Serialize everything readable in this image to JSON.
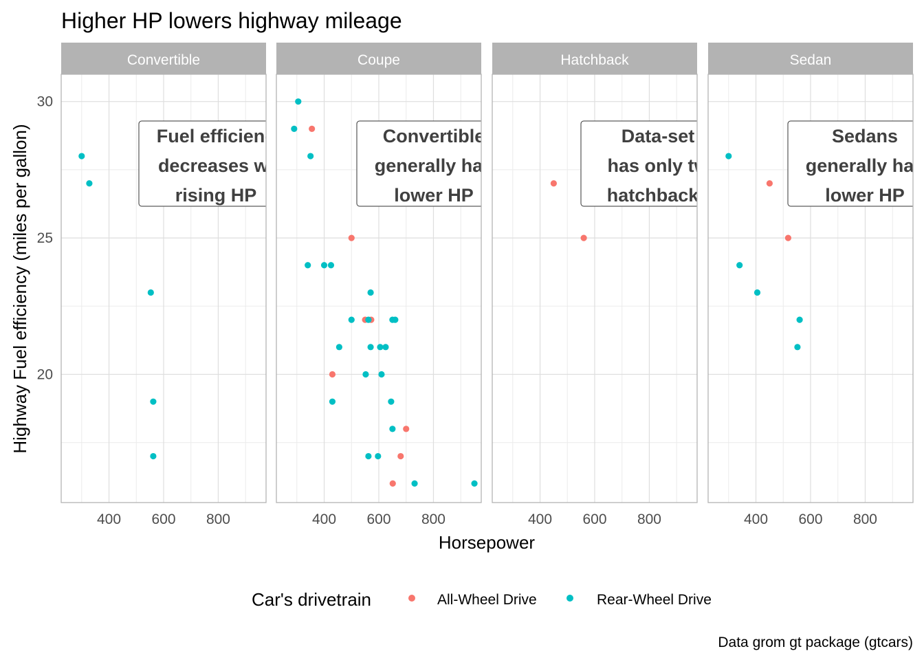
{
  "chart_data": {
    "type": "scatter",
    "title": "Higher HP lowers highway mileage",
    "xlabel": "Horsepower",
    "ylabel": "Highway Fuel efficiency (miles per gallon)",
    "caption": "Data grom gt package (gtcars)",
    "xlim": [
      225,
      975
    ],
    "ylim": [
      15.3,
      31.0
    ],
    "x_ticks": [
      400,
      600,
      800
    ],
    "y_ticks": [
      20,
      25,
      30
    ],
    "grid": true,
    "legend": {
      "title": "Car's drivetrain",
      "position": "bottom",
      "entries": [
        {
          "label": "All-Wheel Drive",
          "color": "#F8766D"
        },
        {
          "label": "Rear-Wheel Drive",
          "color": "#00BFC4"
        }
      ]
    },
    "facets": [
      {
        "label": "Convertible",
        "annotation": [
          "Fuel efficienc",
          "decreases wi",
          "rising HP"
        ],
        "points": [
          {
            "hp": 300,
            "mpg": 28,
            "drive": "Rear-Wheel Drive"
          },
          {
            "hp": 328,
            "mpg": 27,
            "drive": "Rear-Wheel Drive"
          },
          {
            "hp": 553,
            "mpg": 23,
            "drive": "Rear-Wheel Drive"
          },
          {
            "hp": 562,
            "mpg": 19,
            "drive": "Rear-Wheel Drive"
          },
          {
            "hp": 562,
            "mpg": 17,
            "drive": "Rear-Wheel Drive"
          }
        ]
      },
      {
        "label": "Coupe",
        "annotation": [
          "Convertible",
          "generally hav",
          "lower HP"
        ],
        "points": [
          {
            "hp": 305,
            "mpg": 30,
            "drive": "Rear-Wheel Drive"
          },
          {
            "hp": 290,
            "mpg": 29,
            "drive": "Rear-Wheel Drive"
          },
          {
            "hp": 355,
            "mpg": 29,
            "drive": "All-Wheel Drive"
          },
          {
            "hp": 350,
            "mpg": 28,
            "drive": "Rear-Wheel Drive"
          },
          {
            "hp": 500,
            "mpg": 25,
            "drive": "All-Wheel Drive"
          },
          {
            "hp": 340,
            "mpg": 24,
            "drive": "Rear-Wheel Drive"
          },
          {
            "hp": 400,
            "mpg": 24,
            "drive": "Rear-Wheel Drive"
          },
          {
            "hp": 425,
            "mpg": 24,
            "drive": "Rear-Wheel Drive"
          },
          {
            "hp": 570,
            "mpg": 23,
            "drive": "Rear-Wheel Drive"
          },
          {
            "hp": 500,
            "mpg": 22,
            "drive": "Rear-Wheel Drive"
          },
          {
            "hp": 550,
            "mpg": 22,
            "drive": "All-Wheel Drive"
          },
          {
            "hp": 572,
            "mpg": 22,
            "drive": "All-Wheel Drive"
          },
          {
            "hp": 562,
            "mpg": 22,
            "drive": "Rear-Wheel Drive"
          },
          {
            "hp": 650,
            "mpg": 22,
            "drive": "Rear-Wheel Drive"
          },
          {
            "hp": 660,
            "mpg": 22,
            "drive": "Rear-Wheel Drive"
          },
          {
            "hp": 455,
            "mpg": 21,
            "drive": "Rear-Wheel Drive"
          },
          {
            "hp": 570,
            "mpg": 21,
            "drive": "Rear-Wheel Drive"
          },
          {
            "hp": 605,
            "mpg": 21,
            "drive": "Rear-Wheel Drive"
          },
          {
            "hp": 625,
            "mpg": 21,
            "drive": "Rear-Wheel Drive"
          },
          {
            "hp": 430,
            "mpg": 20,
            "drive": "All-Wheel Drive"
          },
          {
            "hp": 552,
            "mpg": 20,
            "drive": "Rear-Wheel Drive"
          },
          {
            "hp": 610,
            "mpg": 20,
            "drive": "Rear-Wheel Drive"
          },
          {
            "hp": 430,
            "mpg": 19,
            "drive": "Rear-Wheel Drive"
          },
          {
            "hp": 645,
            "mpg": 19,
            "drive": "Rear-Wheel Drive"
          },
          {
            "hp": 700,
            "mpg": 18,
            "drive": "All-Wheel Drive"
          },
          {
            "hp": 650,
            "mpg": 18,
            "drive": "Rear-Wheel Drive"
          },
          {
            "hp": 680,
            "mpg": 17,
            "drive": "All-Wheel Drive"
          },
          {
            "hp": 562,
            "mpg": 17,
            "drive": "Rear-Wheel Drive"
          },
          {
            "hp": 597,
            "mpg": 17,
            "drive": "Rear-Wheel Drive"
          },
          {
            "hp": 651,
            "mpg": 16,
            "drive": "All-Wheel Drive"
          },
          {
            "hp": 731,
            "mpg": 16,
            "drive": "Rear-Wheel Drive"
          },
          {
            "hp": 950,
            "mpg": 16,
            "drive": "Rear-Wheel Drive"
          }
        ]
      },
      {
        "label": "Hatchback",
        "annotation": [
          "Data-set",
          "has only tw",
          "hatchbacks"
        ],
        "points": [
          {
            "hp": 450,
            "mpg": 27,
            "drive": "All-Wheel Drive"
          },
          {
            "hp": 560,
            "mpg": 25,
            "drive": "All-Wheel Drive"
          }
        ]
      },
      {
        "label": "Sedan",
        "annotation": [
          "Sedans",
          "generally hav",
          "lower HP"
        ],
        "points": [
          {
            "hp": 300,
            "mpg": 28,
            "drive": "Rear-Wheel Drive"
          },
          {
            "hp": 450,
            "mpg": 27,
            "drive": "All-Wheel Drive"
          },
          {
            "hp": 518,
            "mpg": 25,
            "drive": "All-Wheel Drive"
          },
          {
            "hp": 340,
            "mpg": 24,
            "drive": "Rear-Wheel Drive"
          },
          {
            "hp": 405,
            "mpg": 23,
            "drive": "Rear-Wheel Drive"
          },
          {
            "hp": 560,
            "mpg": 22,
            "drive": "Rear-Wheel Drive"
          },
          {
            "hp": 552,
            "mpg": 21,
            "drive": "Rear-Wheel Drive"
          }
        ]
      }
    ]
  }
}
